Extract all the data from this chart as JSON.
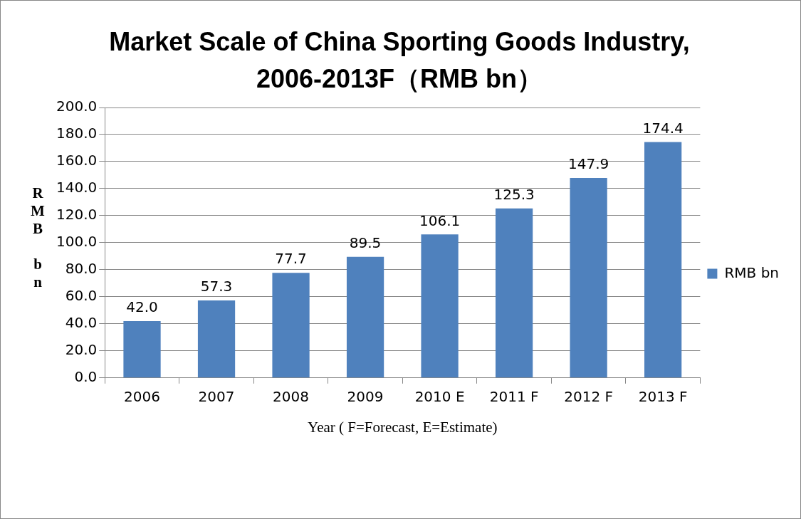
{
  "chart_data": {
    "type": "bar",
    "title": "Market Scale of China Sporting Goods Industry, 2006-2013F（RMB bn）",
    "xlabel": "Year ( F=Forecast, E=Estimate)",
    "ylabel": "RMB bn",
    "categories": [
      "2006",
      "2007",
      "2008",
      "2009",
      "2010 E",
      "2011 F",
      "2012 F",
      "2013 F"
    ],
    "series": [
      {
        "name": "RMB bn",
        "color": "#4f81bd",
        "values": [
          42.0,
          57.3,
          77.7,
          89.5,
          106.1,
          125.3,
          147.9,
          174.4
        ],
        "value_labels": [
          "42.0",
          "57.3",
          "77.7",
          "89.5",
          "106.1",
          "125.3",
          "147.9",
          "174.4"
        ]
      }
    ],
    "ylim": [
      0,
      200
    ],
    "yticks": [
      {
        "value": 0,
        "label": "0.0"
      },
      {
        "value": 20,
        "label": "20.0"
      },
      {
        "value": 40,
        "label": "40.0"
      },
      {
        "value": 60,
        "label": "60.0"
      },
      {
        "value": 80,
        "label": "80.0"
      },
      {
        "value": 100,
        "label": "100.0"
      },
      {
        "value": 120,
        "label": "120.0"
      },
      {
        "value": 140,
        "label": "140.0"
      },
      {
        "value": 160,
        "label": "160.0"
      },
      {
        "value": 180,
        "label": "180.0"
      },
      {
        "value": 200,
        "label": "200.0"
      }
    ],
    "grid": "y",
    "legend": "right"
  }
}
